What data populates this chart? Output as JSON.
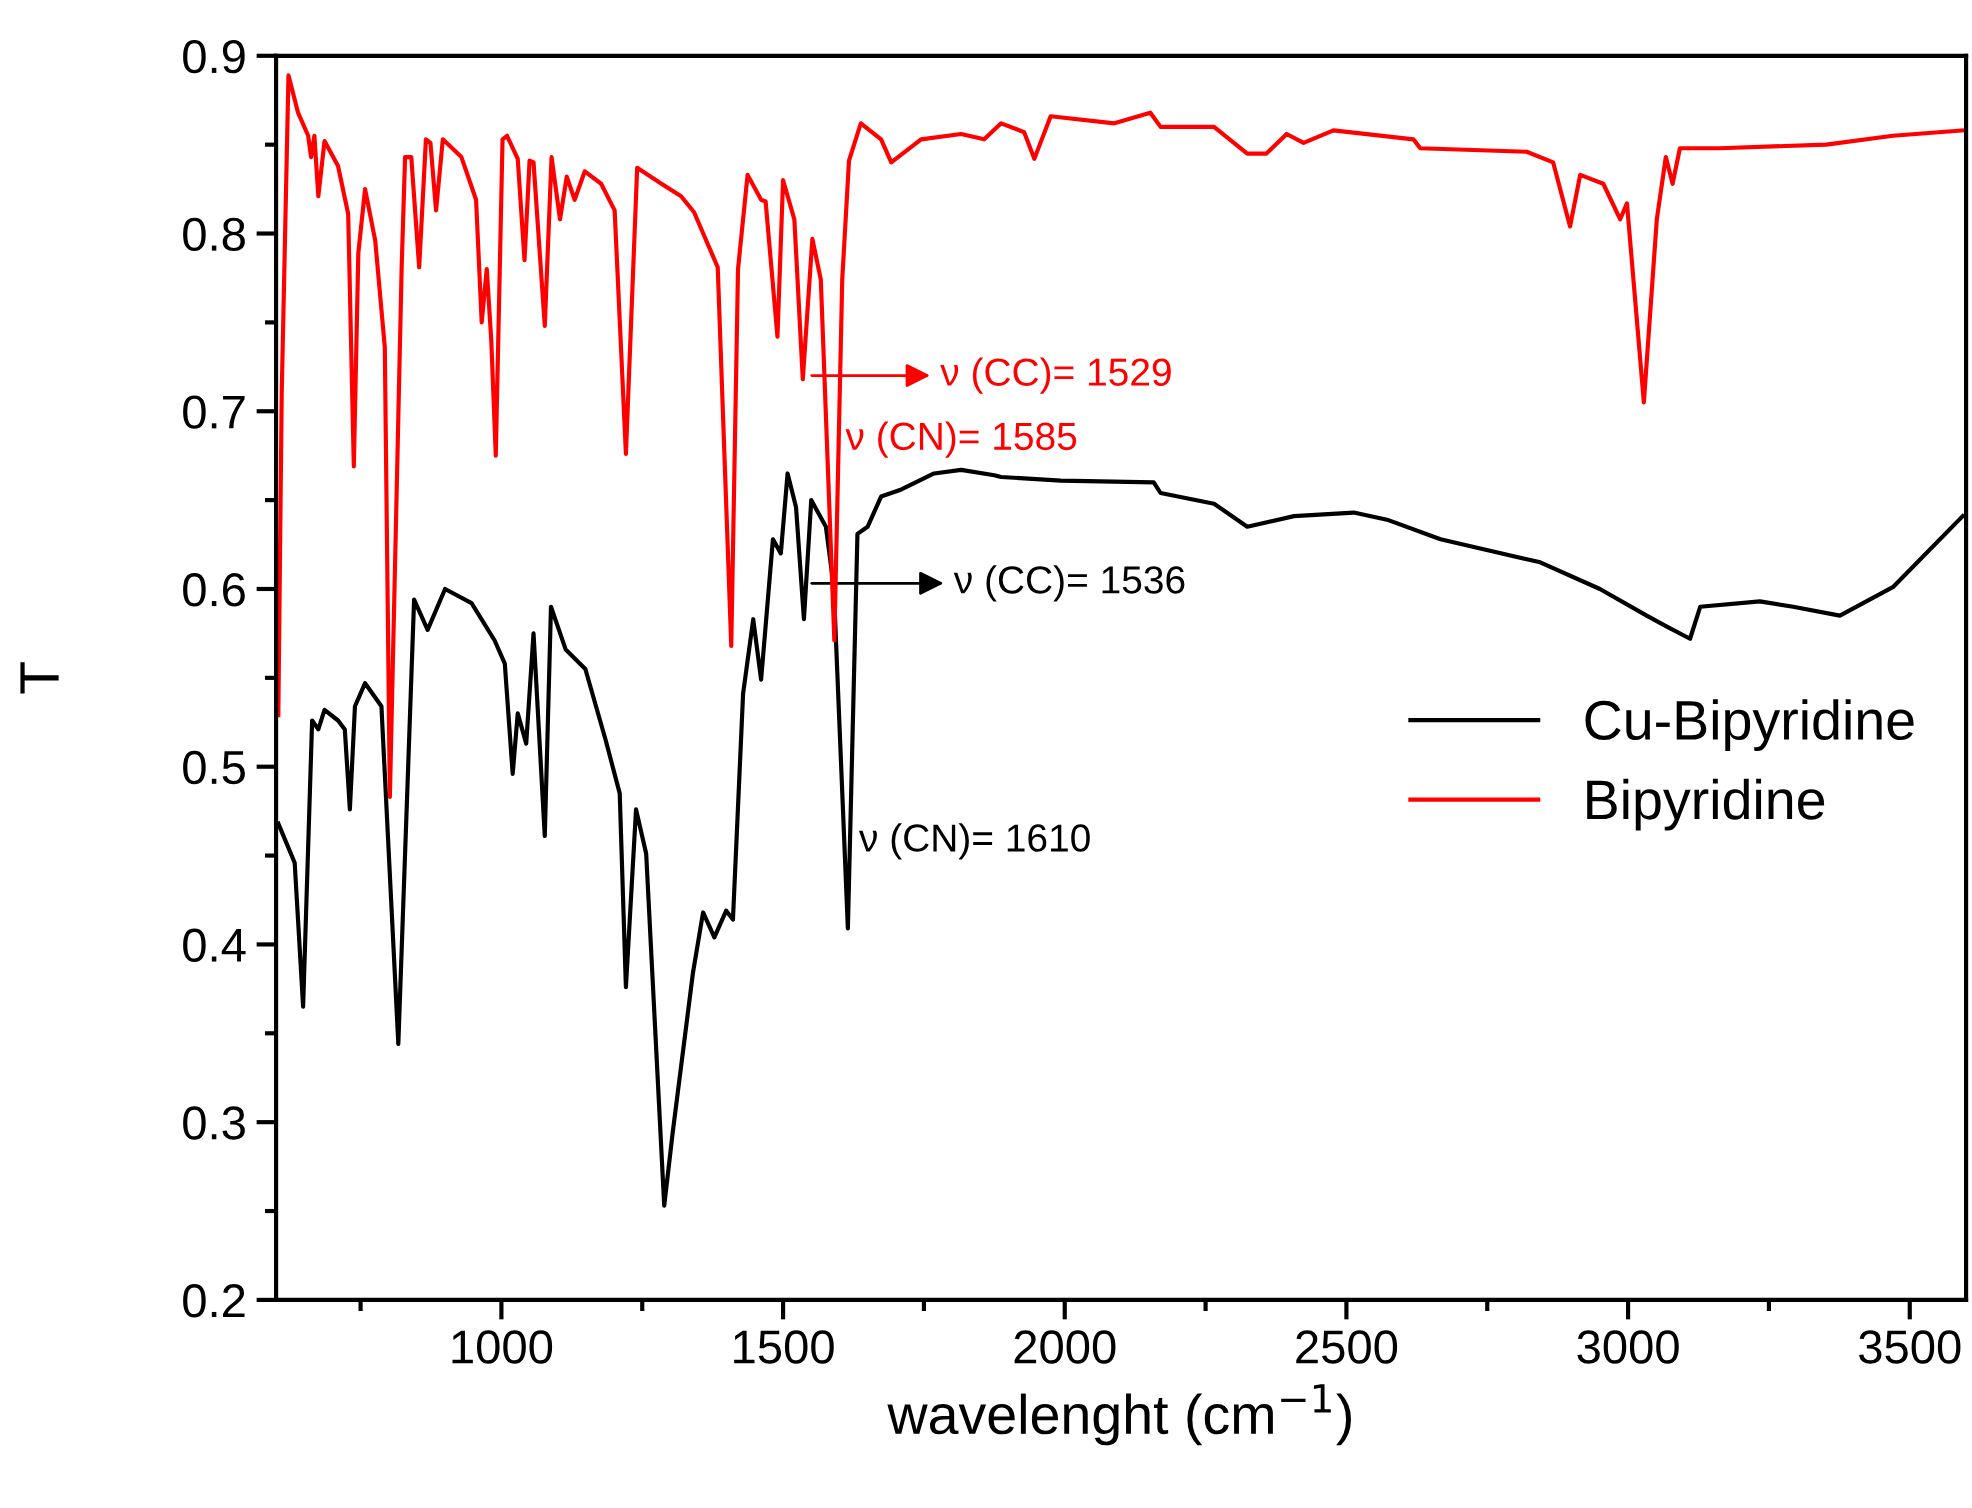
{
  "chart_data": {
    "type": "line",
    "xlabel": "wavelenght (cm$^{−1}$)",
    "ylabel": "T",
    "xlim": [
      600,
      3600
    ],
    "xticks": [
      1000,
      1500,
      2000,
      2500,
      3000,
      3500
    ],
    "ylim": [
      0.2,
      0.9
    ],
    "yticks": [
      0.2,
      0.3,
      0.4,
      0.5,
      0.6,
      0.7,
      0.8,
      0.9
    ],
    "grid": false,
    "legend": "right",
    "marker": "none",
    "line_style": "solid",
    "annotations": [
      "ν (CC)= 1529",
      {
        "text": "ν (CN)= 1585",
        "x": 1591,
        "y": 0.684
      },
      "ν (CC)= 1536",
      {
        "text": "ν (CN)= 1610",
        "x": 1615,
        "y": 0.458
      }
    ],
    "series": [
      {
        "name": "Cu-Bipyridine",
        "color": "#000000",
        "x": [
          604,
          633,
          648,
          664,
          675,
          686,
          710,
          722,
          731,
          740,
          758,
          787,
          817,
          845,
          869,
          900,
          947,
          988,
          1006,
          1020,
          1029,
          1044,
          1057,
          1077,
          1088,
          1114,
          1149,
          1185,
          1210,
          1221,
          1239,
          1257,
          1289,
          1304,
          1340,
          1358,
          1378,
          1399,
          1411,
          1429,
          1447,
          1461,
          1482,
          1496,
          1508,
          1523,
          1537,
          1550,
          1576,
          1590,
          1615,
          1632,
          1650,
          1674,
          1710,
          1768,
          1816,
          1875,
          1887,
          1993,
          2158,
          2170,
          2265,
          2324,
          2407,
          2513,
          2572,
          2667,
          2844,
          2950,
          3033,
          3068,
          3110,
          3128,
          3234,
          3293,
          3376,
          3470,
          3594
        ],
        "values": [
          0.468,
          0.446,
          0.365,
          0.526,
          0.521,
          0.532,
          0.526,
          0.521,
          0.476,
          0.534,
          0.547,
          0.534,
          0.344,
          0.594,
          0.577,
          0.6,
          0.592,
          0.571,
          0.558,
          0.496,
          0.53,
          0.513,
          0.575,
          0.461,
          0.59,
          0.566,
          0.555,
          0.515,
          0.485,
          0.376,
          0.476,
          0.451,
          0.253,
          0.294,
          0.384,
          0.418,
          0.404,
          0.419,
          0.414,
          0.541,
          0.583,
          0.549,
          0.628,
          0.62,
          0.665,
          0.646,
          0.583,
          0.65,
          0.635,
          0.601,
          0.409,
          0.631,
          0.635,
          0.652,
          0.656,
          0.665,
          0.667,
          0.664,
          0.663,
          0.661,
          0.66,
          0.654,
          0.648,
          0.635,
          0.641,
          0.643,
          0.639,
          0.628,
          0.615,
          0.6,
          0.585,
          0.579,
          0.572,
          0.59,
          0.593,
          0.59,
          0.585,
          0.601,
          0.641
        ]
      },
      {
        "name": "Bipyridine",
        "color": "#ff0000",
        "x": [
          604,
          610,
          622,
          639,
          657,
          662,
          668,
          675,
          686,
          710,
          728,
          738,
          746,
          758,
          776,
          793,
          802,
          823,
          829,
          840,
          854,
          866,
          874,
          884,
          896,
          929,
          955,
          965,
          974,
          982,
          990,
          1002,
          1010,
          1029,
          1041,
          1050,
          1057,
          1077,
          1089,
          1104,
          1116,
          1130,
          1148,
          1177,
          1201,
          1221,
          1241,
          1284,
          1319,
          1342,
          1384,
          1408,
          1420,
          1437,
          1461,
          1469,
          1490,
          1500,
          1520,
          1535,
          1552,
          1567,
          1591,
          1605,
          1617,
          1638,
          1674,
          1692,
          1745,
          1816,
          1857,
          1887,
          1928,
          1946,
          1975,
          2088,
          2152,
          2170,
          2265,
          2324,
          2358,
          2394,
          2424,
          2477,
          2619,
          2631,
          2820,
          2867,
          2897,
          2915,
          2956,
          2986,
          2998,
          3028,
          3051,
          3067,
          3079,
          3092,
          3163,
          3352,
          3470,
          3594
        ],
        "values": [
          0.529,
          0.71,
          0.889,
          0.868,
          0.855,
          0.843,
          0.855,
          0.821,
          0.852,
          0.838,
          0.811,
          0.669,
          0.789,
          0.825,
          0.796,
          0.736,
          0.483,
          0.782,
          0.843,
          0.843,
          0.781,
          0.853,
          0.851,
          0.813,
          0.853,
          0.843,
          0.819,
          0.75,
          0.78,
          0.74,
          0.675,
          0.853,
          0.855,
          0.842,
          0.785,
          0.841,
          0.84,
          0.748,
          0.843,
          0.808,
          0.832,
          0.819,
          0.835,
          0.828,
          0.813,
          0.676,
          0.837,
          0.828,
          0.821,
          0.812,
          0.781,
          0.568,
          0.78,
          0.833,
          0.819,
          0.818,
          0.742,
          0.83,
          0.808,
          0.718,
          0.797,
          0.774,
          0.571,
          0.774,
          0.841,
          0.862,
          0.853,
          0.84,
          0.853,
          0.856,
          0.853,
          0.862,
          0.857,
          0.842,
          0.866,
          0.862,
          0.868,
          0.86,
          0.86,
          0.845,
          0.845,
          0.856,
          0.851,
          0.858,
          0.853,
          0.848,
          0.846,
          0.84,
          0.804,
          0.833,
          0.828,
          0.808,
          0.817,
          0.705,
          0.808,
          0.843,
          0.828,
          0.848,
          0.848,
          0.85,
          0.855,
          0.858
        ]
      }
    ]
  }
}
